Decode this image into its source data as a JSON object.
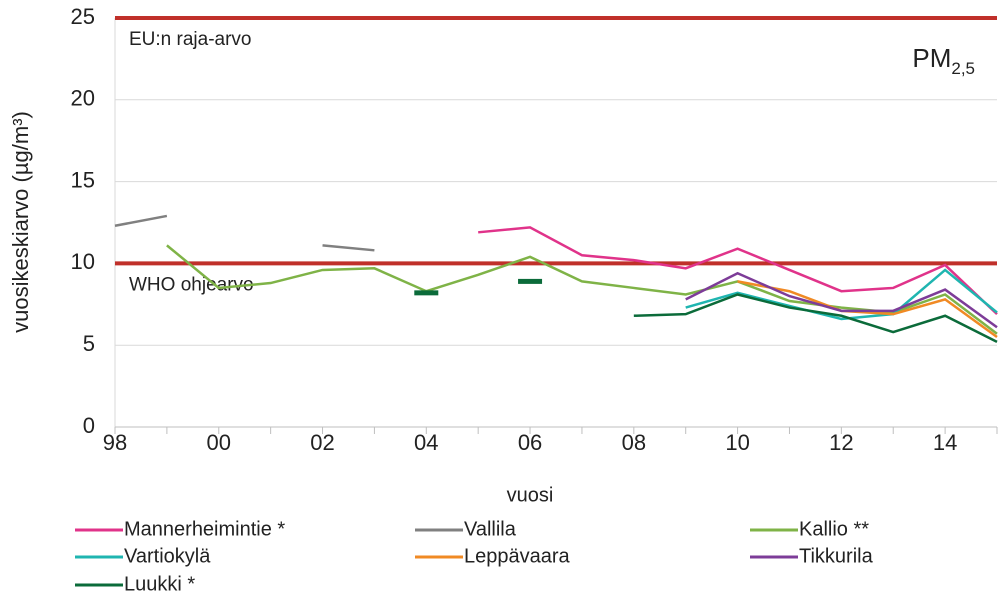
{
  "chart_data": {
    "type": "line",
    "title": "PM",
    "title_subscript": "2,5",
    "ylabel": "vuosikeskiarvo (µg/m³)",
    "xlabel": "vuosi",
    "x": [
      1998,
      1999,
      2000,
      2001,
      2002,
      2003,
      2004,
      2005,
      2006,
      2007,
      2008,
      2009,
      2010,
      2011,
      2012,
      2013,
      2014,
      2015
    ],
    "xlim": [
      1998,
      2015
    ],
    "xticks": [
      {
        "value": 1998,
        "label": "98"
      },
      {
        "value": 2000,
        "label": "00"
      },
      {
        "value": 2002,
        "label": "02"
      },
      {
        "value": 2004,
        "label": "04"
      },
      {
        "value": 2006,
        "label": "06"
      },
      {
        "value": 2008,
        "label": "08"
      },
      {
        "value": 2010,
        "label": "10"
      },
      {
        "value": 2012,
        "label": "12"
      },
      {
        "value": 2014,
        "label": "14"
      }
    ],
    "ylim": [
      0,
      25
    ],
    "yticks": [
      0,
      5,
      10,
      15,
      20,
      25
    ],
    "grid": true,
    "reference_lines": [
      {
        "value": 25,
        "label": "EU:n raja-arvo",
        "color": "#c0302a"
      },
      {
        "value": 10,
        "label": "WHO ohjearvo",
        "color": "#c0302a"
      }
    ],
    "series": [
      {
        "name": "Mannerheimintie *",
        "color": "#e0338a",
        "values": [
          null,
          null,
          null,
          null,
          null,
          null,
          null,
          11.9,
          12.2,
          10.5,
          10.2,
          9.7,
          10.9,
          9.6,
          8.3,
          8.5,
          9.9,
          6.9
        ]
      },
      {
        "name": "Vallila",
        "color": "#808080",
        "values": [
          12.3,
          12.9,
          null,
          null,
          11.1,
          10.8,
          null,
          null,
          null,
          null,
          null,
          null,
          null,
          null,
          null,
          null,
          null,
          null
        ]
      },
      {
        "name": "Kallio **",
        "color": "#7fb347",
        "values": [
          null,
          11.1,
          8.5,
          8.8,
          9.6,
          9.7,
          8.3,
          9.3,
          10.4,
          8.9,
          8.5,
          8.1,
          8.9,
          7.7,
          7.3,
          7.0,
          8.1,
          5.7
        ]
      },
      {
        "name": "Vartiokylä",
        "color": "#1fb5b0",
        "values": [
          null,
          null,
          null,
          null,
          null,
          null,
          null,
          null,
          null,
          null,
          null,
          7.3,
          8.2,
          7.4,
          6.6,
          6.9,
          9.6,
          7.0
        ]
      },
      {
        "name": "Leppävaara",
        "color": "#f08a24",
        "values": [
          null,
          null,
          null,
          null,
          null,
          null,
          null,
          null,
          null,
          null,
          null,
          null,
          8.9,
          8.3,
          7.1,
          6.9,
          7.8,
          5.5
        ]
      },
      {
        "name": "Tikkurila",
        "color": "#7d3c98",
        "values": [
          null,
          null,
          null,
          null,
          null,
          null,
          null,
          null,
          null,
          null,
          null,
          7.8,
          9.4,
          8.0,
          7.1,
          7.1,
          8.4,
          6.1
        ]
      },
      {
        "name": "Luukki *",
        "color": "#0b6b3a",
        "values": [
          null,
          null,
          null,
          null,
          null,
          null,
          8.2,
          null,
          8.9,
          null,
          6.8,
          6.9,
          8.1,
          7.3,
          6.8,
          5.8,
          6.8,
          5.2
        ]
      }
    ]
  }
}
